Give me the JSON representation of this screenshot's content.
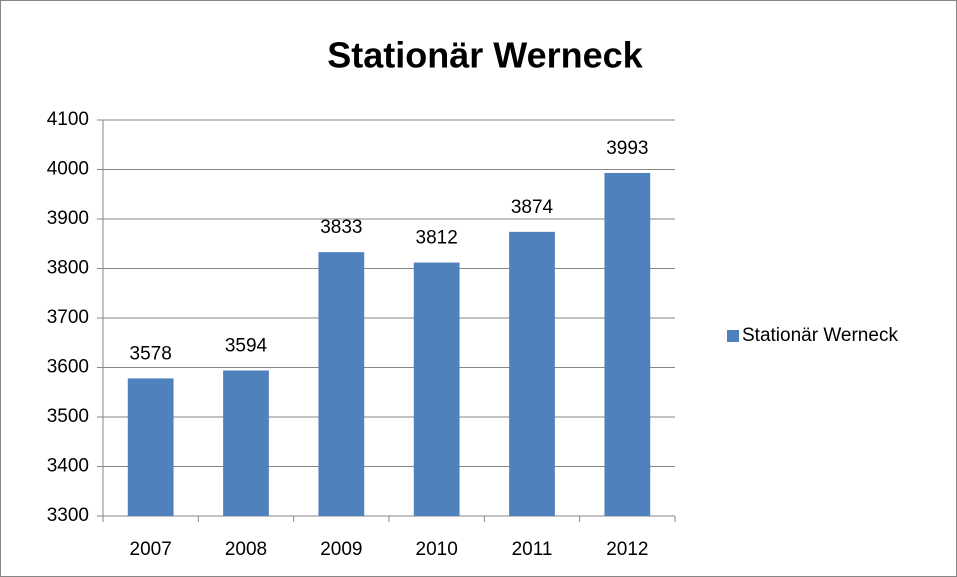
{
  "chart_data": {
    "type": "bar",
    "title": "Stationär Werneck",
    "categories": [
      "2007",
      "2008",
      "2009",
      "2010",
      "2011",
      "2012"
    ],
    "series": [
      {
        "name": "Stationär Werneck",
        "color": "#4f81bd",
        "values": [
          3578,
          3594,
          3833,
          3812,
          3874,
          3993
        ]
      }
    ],
    "ylim": [
      3300,
      4100
    ],
    "yticks": [
      3300,
      3400,
      3500,
      3600,
      3700,
      3800,
      3900,
      4000,
      4100
    ],
    "grid": true,
    "legend": "right"
  }
}
